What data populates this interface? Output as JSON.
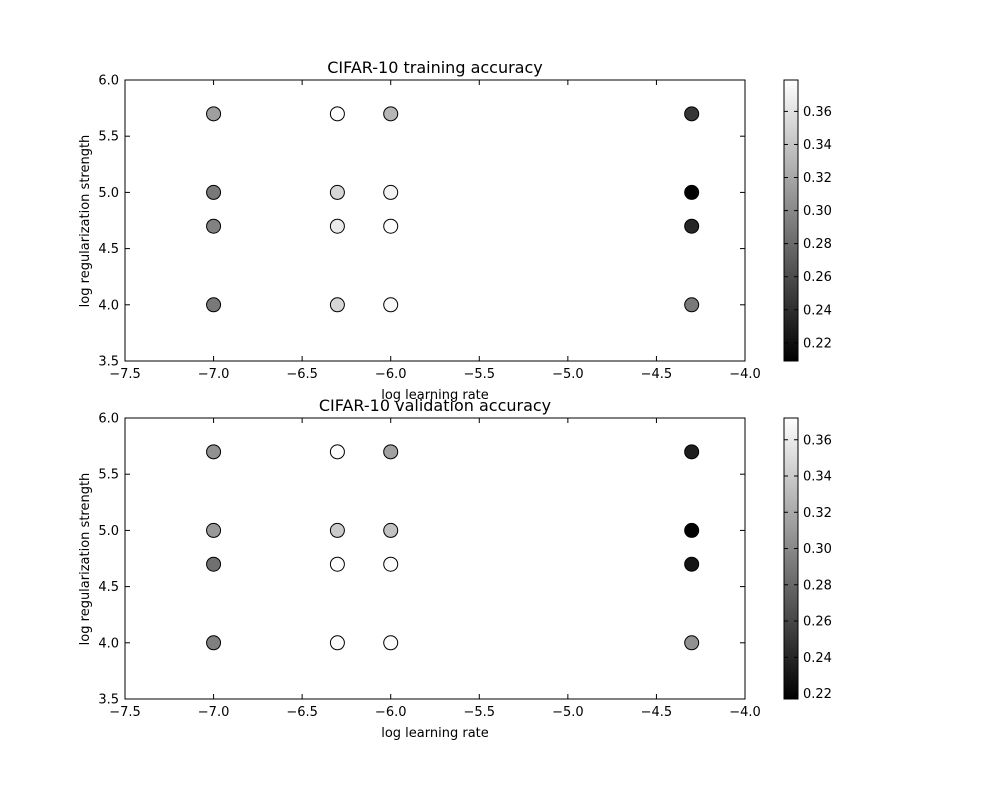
{
  "chart_data": [
    {
      "type": "scatter",
      "title": "CIFAR-10 training accuracy",
      "xlabel": "log learning rate",
      "ylabel": "log regularization strength",
      "xlim": [
        -7.5,
        -4.0
      ],
      "ylim": [
        3.5,
        6.0
      ],
      "xticks": [
        "−7.5",
        "−7.0",
        "−6.5",
        "−6.0",
        "−5.5",
        "−5.0",
        "−4.5",
        "−4.0"
      ],
      "yticks": [
        "3.5",
        "4.0",
        "4.5",
        "5.0",
        "5.5",
        "6.0"
      ],
      "grid": false,
      "colormap": "gray",
      "color_range": [
        0.209,
        0.379
      ],
      "colorbar_ticks": [
        "0.22",
        "0.24",
        "0.26",
        "0.28",
        "0.30",
        "0.32",
        "0.34",
        "0.36"
      ],
      "points": [
        {
          "x": -7.0,
          "y": 5.699,
          "value": 0.315
        },
        {
          "x": -7.0,
          "y": 5.0,
          "value": 0.29
        },
        {
          "x": -7.0,
          "y": 4.699,
          "value": 0.295
        },
        {
          "x": -7.0,
          "y": 4.0,
          "value": 0.29
        },
        {
          "x": -6.301,
          "y": 5.699,
          "value": 0.378
        },
        {
          "x": -6.301,
          "y": 5.0,
          "value": 0.352
        },
        {
          "x": -6.301,
          "y": 4.699,
          "value": 0.365
        },
        {
          "x": -6.301,
          "y": 4.0,
          "value": 0.352
        },
        {
          "x": -6.0,
          "y": 5.699,
          "value": 0.33
        },
        {
          "x": -6.0,
          "y": 5.0,
          "value": 0.37
        },
        {
          "x": -6.0,
          "y": 4.699,
          "value": 0.377
        },
        {
          "x": -6.0,
          "y": 4.0,
          "value": 0.375
        },
        {
          "x": -4.301,
          "y": 5.699,
          "value": 0.245
        },
        {
          "x": -4.301,
          "y": 5.0,
          "value": 0.21
        },
        {
          "x": -4.301,
          "y": 4.699,
          "value": 0.235
        },
        {
          "x": -4.301,
          "y": 4.0,
          "value": 0.29
        }
      ]
    },
    {
      "type": "scatter",
      "title": "CIFAR-10 validation accuracy",
      "xlabel": "log learning rate",
      "ylabel": "log regularization strength",
      "xlim": [
        -7.5,
        -4.0
      ],
      "ylim": [
        3.5,
        6.0
      ],
      "xticks": [
        "−7.5",
        "−7.0",
        "−6.5",
        "−6.0",
        "−5.5",
        "−5.0",
        "−4.5",
        "−4.0"
      ],
      "yticks": [
        "3.5",
        "4.0",
        "4.5",
        "5.0",
        "5.5",
        "6.0"
      ],
      "grid": false,
      "colormap": "gray",
      "color_range": [
        0.217,
        0.372
      ],
      "colorbar_ticks": [
        "0.22",
        "0.24",
        "0.26",
        "0.28",
        "0.30",
        "0.32",
        "0.34",
        "0.36"
      ],
      "points": [
        {
          "x": -7.0,
          "y": 5.699,
          "value": 0.305
        },
        {
          "x": -7.0,
          "y": 5.0,
          "value": 0.31
        },
        {
          "x": -7.0,
          "y": 4.699,
          "value": 0.285
        },
        {
          "x": -7.0,
          "y": 4.0,
          "value": 0.295
        },
        {
          "x": -6.301,
          "y": 5.699,
          "value": 0.37
        },
        {
          "x": -6.301,
          "y": 5.0,
          "value": 0.34
        },
        {
          "x": -6.301,
          "y": 4.699,
          "value": 0.37
        },
        {
          "x": -6.301,
          "y": 4.0,
          "value": 0.37
        },
        {
          "x": -6.0,
          "y": 5.699,
          "value": 0.315
        },
        {
          "x": -6.0,
          "y": 5.0,
          "value": 0.335
        },
        {
          "x": -6.0,
          "y": 4.699,
          "value": 0.37
        },
        {
          "x": -6.0,
          "y": 4.0,
          "value": 0.37
        },
        {
          "x": -4.301,
          "y": 5.699,
          "value": 0.235
        },
        {
          "x": -4.301,
          "y": 5.0,
          "value": 0.218
        },
        {
          "x": -4.301,
          "y": 4.699,
          "value": 0.23
        },
        {
          "x": -4.301,
          "y": 4.0,
          "value": 0.305
        }
      ]
    }
  ]
}
